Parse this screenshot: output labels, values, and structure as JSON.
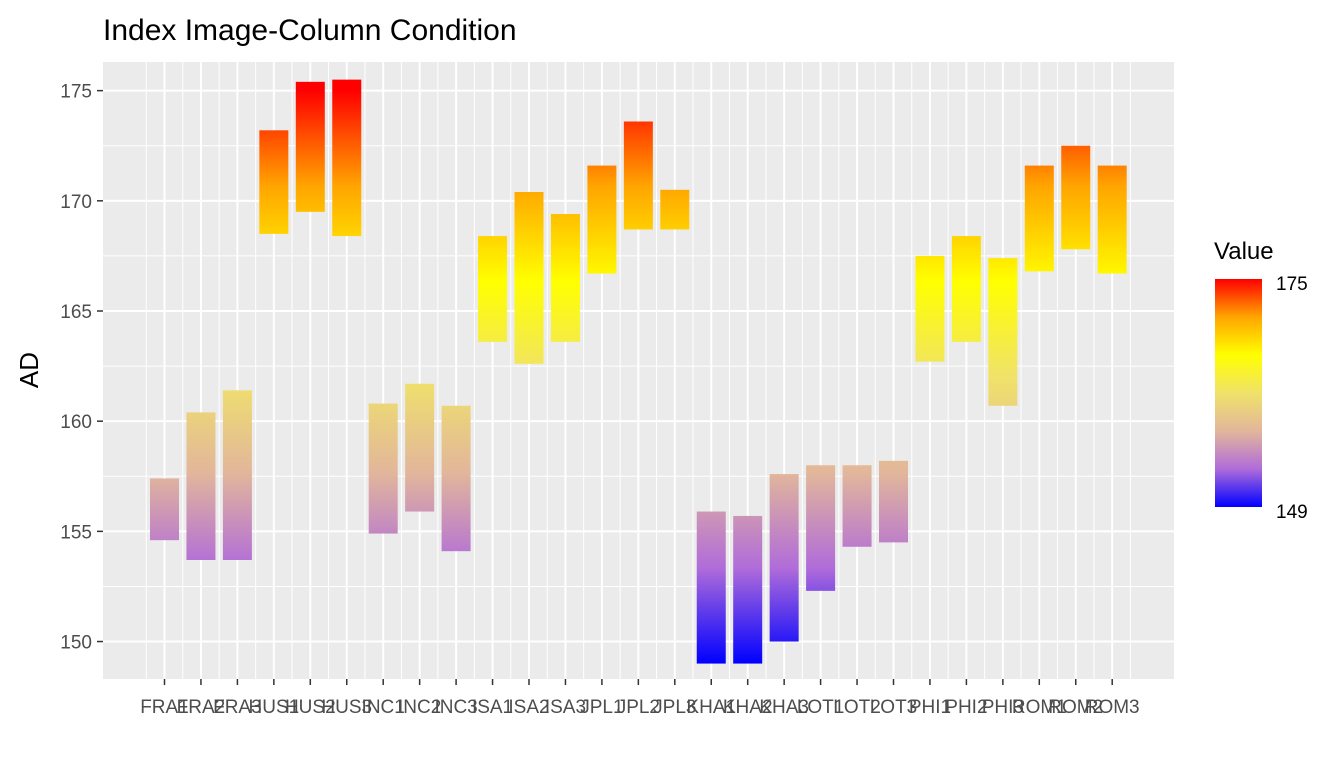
{
  "chart_data": {
    "type": "floating-bar",
    "title": "Index Image-Column Condition",
    "xlabel": "",
    "ylabel": "AD",
    "ylim": [
      148.3,
      176.3
    ],
    "yticks": [
      150,
      155,
      160,
      165,
      170,
      175
    ],
    "grid": true,
    "categories": [
      "FRA1",
      "FRA2",
      "FRA3",
      "HUS1",
      "HUS2",
      "HUS3",
      "INC1",
      "INC2",
      "INC3",
      "ISA1",
      "ISA2",
      "ISA3",
      "JPL1",
      "JPL2",
      "JPL3",
      "KHA1",
      "KHA2",
      "KHA3",
      "LOT1",
      "LOT2",
      "LOT3",
      "PHI1",
      "PHI2",
      "PHI3",
      "ROM1",
      "ROM2",
      "ROM3"
    ],
    "ranges": [
      [
        154.6,
        157.4
      ],
      [
        153.7,
        160.4
      ],
      [
        153.7,
        161.4
      ],
      [
        168.5,
        173.2
      ],
      [
        169.5,
        175.4
      ],
      [
        168.4,
        175.5
      ],
      [
        154.9,
        160.8
      ],
      [
        155.9,
        161.7
      ],
      [
        154.1,
        160.7
      ],
      [
        163.6,
        168.4
      ],
      [
        162.6,
        170.4
      ],
      [
        163.6,
        169.4
      ],
      [
        166.7,
        171.6
      ],
      [
        168.7,
        173.6
      ],
      [
        168.7,
        170.5
      ],
      [
        149.0,
        155.9
      ],
      [
        149.0,
        155.7
      ],
      [
        150.0,
        157.6
      ],
      [
        152.3,
        158.0
      ],
      [
        154.3,
        158.0
      ],
      [
        154.5,
        158.2
      ],
      [
        162.7,
        167.5
      ],
      [
        163.6,
        168.4
      ],
      [
        160.7,
        167.4
      ],
      [
        166.8,
        171.6
      ],
      [
        167.8,
        172.5
      ],
      [
        166.7,
        171.6
      ]
    ],
    "legend": {
      "title": "Value",
      "min_label": "149",
      "max_label": "175",
      "min": 149,
      "max": 175,
      "colors": [
        "#0000ff",
        "#b06cd9",
        "#e2b69b",
        "#f0e26a",
        "#ffff00",
        "#ffa500",
        "#ff0000"
      ],
      "position": "right"
    }
  }
}
